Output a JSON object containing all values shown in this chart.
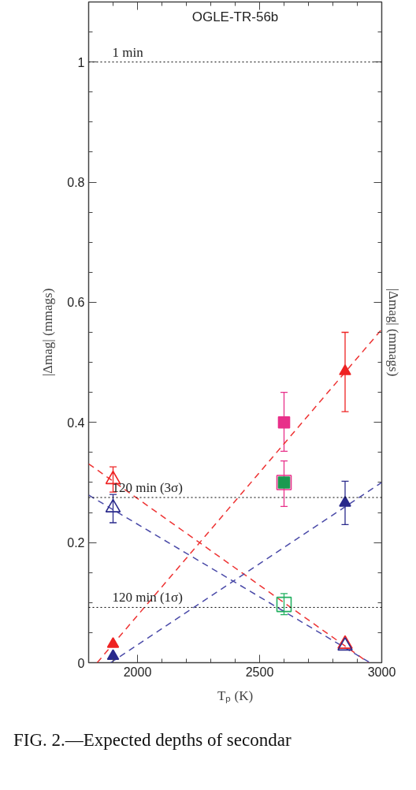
{
  "chart_data": {
    "type": "scatter",
    "title": "OGLE-TR-56b",
    "xlabel": "Tₚ (K)",
    "ylabel": "|Δmag| (mmags)",
    "y2label": "|Δmag| (mmags)",
    "xlim": [
      1800,
      3000
    ],
    "ylim": [
      0,
      1.1
    ],
    "xticks": [
      {
        "value": 1800,
        "label": null
      },
      {
        "value": 1900,
        "label": null
      },
      2000,
      {
        "value": 2100,
        "label": null
      },
      {
        "value": 2200,
        "label": null
      },
      {
        "value": 2300,
        "label": null
      },
      {
        "value": 2400,
        "label": null
      },
      2500,
      {
        "value": 2600,
        "label": null
      },
      {
        "value": 2700,
        "label": null
      },
      {
        "value": 2800,
        "label": null
      },
      {
        "value": 2900,
        "label": null
      },
      3000
    ],
    "yticks": [
      0,
      {
        "value": 0.05,
        "label": null
      },
      {
        "value": 0.1,
        "label": null
      },
      {
        "value": 0.15,
        "label": null
      },
      0.2,
      {
        "value": 0.25,
        "label": null
      },
      {
        "value": 0.3,
        "label": null
      },
      {
        "value": 0.35,
        "label": null
      },
      0.4,
      {
        "value": 0.45,
        "label": null
      },
      {
        "value": 0.5,
        "label": null
      },
      {
        "value": 0.55,
        "label": null
      },
      0.6,
      {
        "value": 0.65,
        "label": null
      },
      {
        "value": 0.7,
        "label": null
      },
      {
        "value": 0.75,
        "label": null
      },
      0.8,
      {
        "value": 0.85,
        "label": null
      },
      {
        "value": 0.9,
        "label": null
      },
      {
        "value": 0.95,
        "label": null
      },
      1,
      {
        "value": 1.05,
        "label": null
      }
    ],
    "grid": false,
    "ref_lines": [
      {
        "axis": "y",
        "value": 1,
        "label": "1 min",
        "line_style": "dotted",
        "color": "#000000"
      },
      {
        "axis": "y",
        "value": 0.275,
        "label": "120 min (3σ)",
        "line_style": "dotted",
        "color": "#000000"
      },
      {
        "axis": "y",
        "value": 0.092,
        "label": "120 min (1σ)",
        "line_style": "dotted",
        "color": "#000000"
      }
    ],
    "series": [
      {
        "type": "line",
        "color": "#ee3333",
        "line_style": "dashed",
        "x": [
          1835,
          3000
        ],
        "values": [
          0,
          0.555
        ]
      },
      {
        "type": "line",
        "color": "#ee3333",
        "line_style": "dashed",
        "x": [
          1800,
          2946
        ],
        "values": [
          0.331,
          0
        ]
      },
      {
        "type": "line",
        "color": "#4a4aa8",
        "line_style": "dashed",
        "x": [
          1890,
          3000
        ],
        "values": [
          0,
          0.3
        ]
      },
      {
        "type": "line",
        "color": "#4a4aa8",
        "line_style": "dashed",
        "x": [
          1800,
          2952
        ],
        "values": [
          0.279,
          0
        ]
      },
      {
        "color": "#ee2222",
        "marker": "triangle",
        "x": [
          1900,
          2850
        ],
        "values": [
          0.031,
          0.485
        ],
        "errors": [
          null,
          [
            0.418,
            0.55
          ]
        ]
      },
      {
        "color": "#ee2222",
        "marker": "triangle_open",
        "x": [
          1900,
          2850
        ],
        "values": [
          0.305,
          0.031
        ],
        "errors": [
          0.021,
          null
        ]
      },
      {
        "color": "#2a2a8c",
        "marker": "triangle",
        "x": [
          1900,
          2850
        ],
        "values": [
          0.011,
          0.266
        ],
        "errors": [
          null,
          [
            0.23,
            0.302
          ]
        ]
      },
      {
        "color": "#2a2a8c",
        "marker": "triangle_open",
        "x": [
          1900,
          2850
        ],
        "values": [
          0.258,
          0.028
        ],
        "errors": [
          [
            0.233,
            0.28
          ],
          null
        ]
      },
      {
        "color": "#e8308a",
        "marker": "square",
        "x": [
          2600
        ],
        "values": [
          0.4
        ],
        "errors": [
          [
            0.352,
            0.45
          ]
        ]
      },
      {
        "color": "#1a9a50",
        "marker": "square",
        "x": [
          2600
        ],
        "values": [
          0.3
        ]
      },
      {
        "color": "#e8308a",
        "marker": "square_open",
        "x": [
          2600
        ],
        "values": [
          0.3
        ],
        "errors": [
          [
            0.26,
            0.336
          ]
        ]
      },
      {
        "color": "#22b060",
        "marker": "square_open",
        "x": [
          2600
        ],
        "values": [
          0.097
        ],
        "errors": [
          [
            0.08,
            0.115
          ]
        ]
      }
    ],
    "annotations": [
      "FIG. 2.—Expected depths of secondar"
    ]
  }
}
